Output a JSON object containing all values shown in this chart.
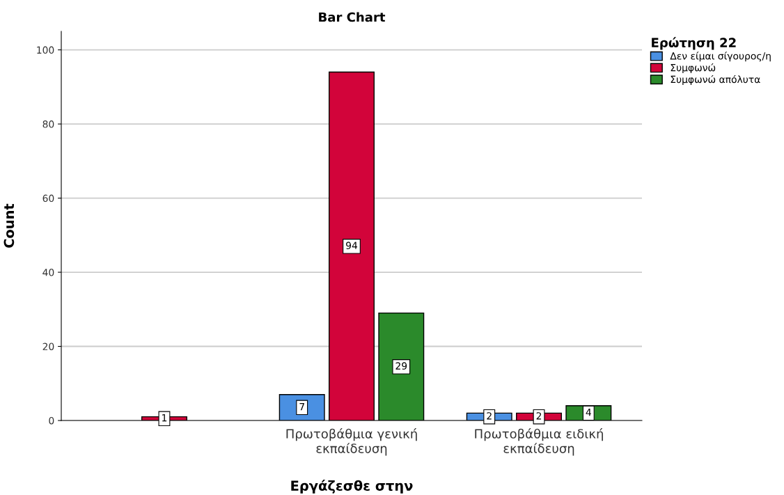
{
  "chart_data": {
    "type": "bar",
    "title": "Bar Chart",
    "xlabel": "Εργάζεσθε στην",
    "ylabel": "Count",
    "legend_title": "Ερώτηση 22",
    "categories": [
      null,
      "Πρωτοβάθμια γενική\nεκπαίδευση",
      "Πρωτοβάθμια ειδική\nεκπαίδευση"
    ],
    "series": [
      {
        "name": "Δεν είμαι σίγουρος/η",
        "color": "#4a90e2",
        "values": [
          null,
          7,
          2
        ]
      },
      {
        "name": "Συμφωνώ",
        "color": "#d2043a",
        "values": [
          1,
          94,
          2
        ]
      },
      {
        "name": "Συμφωνώ απόλυτα",
        "color": "#2b8a2b",
        "values": [
          null,
          29,
          4
        ]
      }
    ],
    "ylim": [
      0,
      105
    ],
    "yticks": [
      0,
      20,
      40,
      60,
      80,
      100
    ],
    "grid": "y",
    "legend": "top right",
    "data_labels": true
  }
}
